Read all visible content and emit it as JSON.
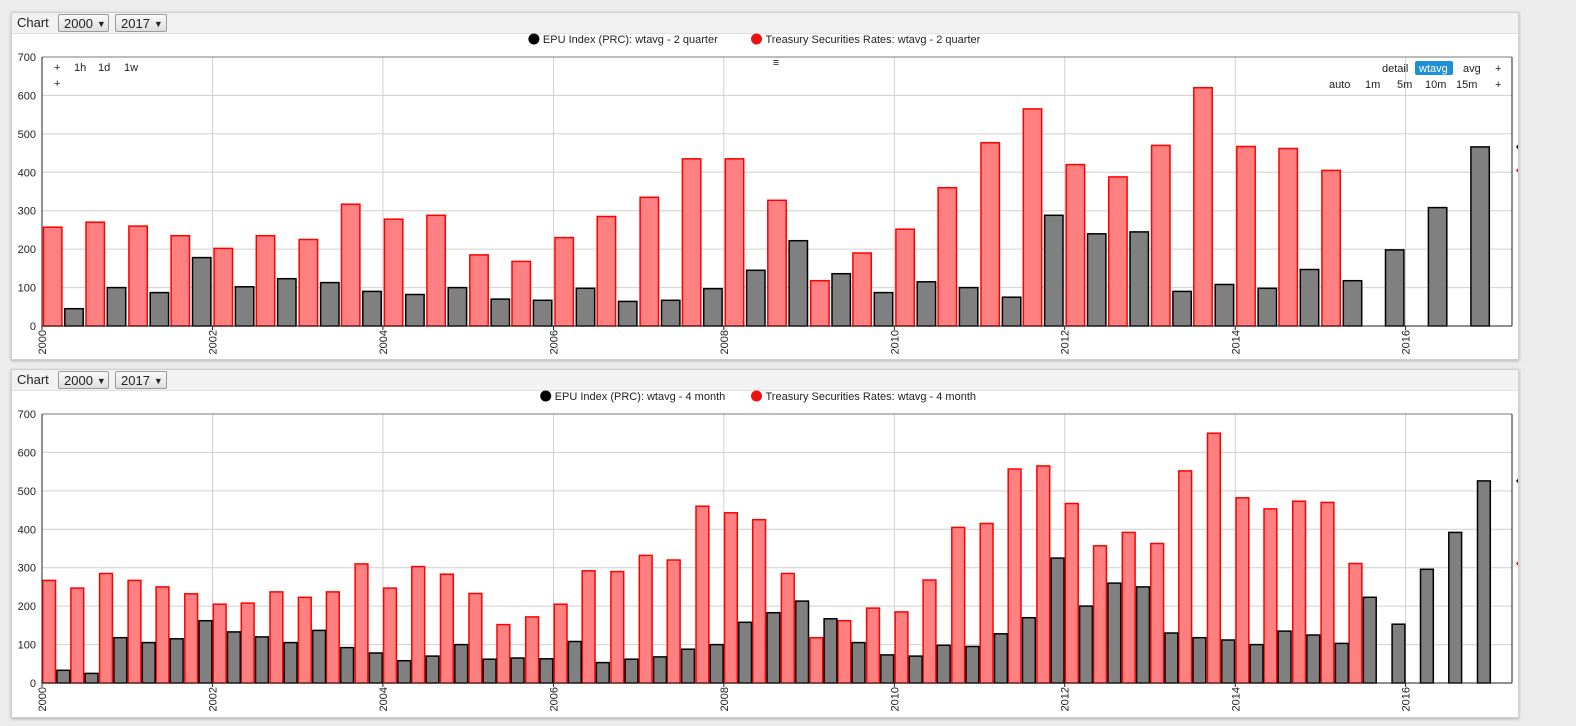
{
  "colors": {
    "epu_fill": "#808080",
    "epu_stroke": "#000000",
    "treasury_fill": "#ff8080",
    "treasury_stroke": "#ff0000",
    "active_button": "#1f8fd8",
    "grid": "#d0d0d0"
  },
  "widgets": [
    {
      "header": {
        "title": "Chart",
        "from": "2000",
        "to": "2017",
        "dropdown_icon": "caret-down-icon"
      },
      "controls": {
        "zoom_left": [
          "+",
          "1h",
          "1d",
          "1w"
        ],
        "zoom_left_row2": [
          "+"
        ],
        "menu_icon": "≡",
        "mode_row": [
          "detail",
          "wtavg",
          "avg",
          "+"
        ],
        "active_mode": "wtavg",
        "period_row": [
          "auto",
          "1m",
          "5m",
          "10m",
          "15m",
          "+"
        ]
      },
      "badges": [
        {
          "value": "466",
          "series": "epu"
        },
        {
          "value": "405",
          "series": "treasury"
        }
      ]
    },
    {
      "header": {
        "title": "Chart",
        "from": "2000",
        "to": "2017",
        "dropdown_icon": "caret-down-icon"
      },
      "controls": null,
      "badges": [
        {
          "value": "526",
          "series": "epu"
        },
        {
          "value": "311",
          "series": "treasury"
        }
      ]
    }
  ],
  "chart_data": [
    {
      "type": "bar",
      "x_axis": "date",
      "xlim": [
        "2000-01-01",
        "2017-04-01"
      ],
      "ylim": [
        0,
        700
      ],
      "yticks": [
        0,
        100,
        200,
        300,
        400,
        500,
        600,
        700
      ],
      "xticks": [
        "2000",
        "2002",
        "2004",
        "2006",
        "2008",
        "2010",
        "2012",
        "2014",
        "2016"
      ],
      "grid": true,
      "legend_position": "top-center",
      "period": "2 quarter",
      "series": [
        {
          "name": "EPU Index (PRC): wtavg - 2 quarter",
          "key": "epu",
          "x": [
            "2000-01-01",
            "2000-07-01",
            "2001-01-01",
            "2001-07-01",
            "2002-01-01",
            "2002-07-01",
            "2003-01-01",
            "2003-07-01",
            "2004-01-01",
            "2004-07-01",
            "2005-01-01",
            "2005-07-01",
            "2006-01-01",
            "2006-07-01",
            "2007-01-01",
            "2007-07-01",
            "2008-01-01",
            "2008-07-01",
            "2009-01-01",
            "2009-07-01",
            "2010-01-01",
            "2010-07-01",
            "2011-01-01",
            "2011-07-01",
            "2012-01-01",
            "2012-07-01",
            "2013-01-01",
            "2013-07-01",
            "2014-01-01",
            "2014-07-01",
            "2015-01-01",
            "2015-07-01",
            "2016-01-01",
            "2016-07-01"
          ],
          "values": [
            45,
            100,
            87,
            178,
            102,
            123,
            113,
            90,
            82,
            100,
            70,
            67,
            98,
            64,
            67,
            97,
            145,
            222,
            136,
            87,
            115,
            100,
            75,
            288,
            240,
            245,
            90,
            108,
            98,
            147,
            118,
            198,
            308,
            466
          ]
        },
        {
          "name": "Treasury Securities Rates: wtavg - 2 quarter",
          "key": "treasury",
          "x": [
            "2000-01-01",
            "2000-07-01",
            "2001-01-01",
            "2001-07-01",
            "2002-01-01",
            "2002-07-01",
            "2003-01-01",
            "2003-07-01",
            "2004-01-01",
            "2004-07-01",
            "2005-01-01",
            "2005-07-01",
            "2006-01-01",
            "2006-07-01",
            "2007-01-01",
            "2007-07-01",
            "2008-01-01",
            "2008-07-01",
            "2009-01-01",
            "2009-07-01",
            "2010-01-01",
            "2010-07-01",
            "2011-01-01",
            "2011-07-01",
            "2012-01-01",
            "2012-07-01",
            "2013-01-01",
            "2013-07-01",
            "2014-01-01",
            "2014-07-01",
            "2015-01-01",
            "2015-07-01"
          ],
          "values": [
            257,
            270,
            260,
            235,
            202,
            235,
            225,
            317,
            278,
            288,
            185,
            168,
            230,
            285,
            335,
            435,
            435,
            327,
            118,
            190,
            252,
            360,
            477,
            565,
            420,
            388,
            470,
            620,
            467,
            462,
            405,
            0
          ]
        }
      ]
    },
    {
      "type": "bar",
      "x_axis": "date",
      "xlim": [
        "2000-01-01",
        "2017-04-01"
      ],
      "ylim": [
        0,
        700
      ],
      "yticks": [
        0,
        100,
        200,
        300,
        400,
        500,
        600,
        700
      ],
      "xticks": [
        "2000",
        "2002",
        "2004",
        "2006",
        "2008",
        "2010",
        "2012",
        "2014",
        "2016"
      ],
      "grid": true,
      "legend_position": "top-center",
      "period": "4 month",
      "series": [
        {
          "name": "EPU Index (PRC): wtavg - 4 month",
          "key": "epu",
          "x": [
            "2000-01-01",
            "2000-05-01",
            "2000-09-01",
            "2001-01-01",
            "2001-05-01",
            "2001-09-01",
            "2002-01-01",
            "2002-05-01",
            "2002-09-01",
            "2003-01-01",
            "2003-05-01",
            "2003-09-01",
            "2004-01-01",
            "2004-05-01",
            "2004-09-01",
            "2005-01-01",
            "2005-05-01",
            "2005-09-01",
            "2006-01-01",
            "2006-05-01",
            "2006-09-01",
            "2007-01-01",
            "2007-05-01",
            "2007-09-01",
            "2008-01-01",
            "2008-05-01",
            "2008-09-01",
            "2009-01-01",
            "2009-05-01",
            "2009-09-01",
            "2010-01-01",
            "2010-05-01",
            "2010-09-01",
            "2011-01-01",
            "2011-05-01",
            "2011-09-01",
            "2012-01-01",
            "2012-05-01",
            "2012-09-01",
            "2013-01-01",
            "2013-05-01",
            "2013-09-01",
            "2014-01-01",
            "2014-05-01",
            "2014-09-01",
            "2015-01-01",
            "2015-05-01",
            "2015-09-01",
            "2016-01-01",
            "2016-05-01",
            "2016-09-01"
          ],
          "values": [
            33,
            25,
            118,
            105,
            115,
            162,
            133,
            120,
            105,
            137,
            92,
            78,
            58,
            70,
            100,
            62,
            65,
            63,
            108,
            53,
            62,
            68,
            88,
            100,
            158,
            183,
            213,
            167,
            105,
            73,
            70,
            98,
            95,
            128,
            170,
            325,
            200,
            260,
            250,
            130,
            118,
            112,
            100,
            135,
            125,
            103,
            223,
            153,
            296,
            392,
            526
          ]
        },
        {
          "name": "Treasury Securities Rates: wtavg - 4 month",
          "key": "treasury",
          "x": [
            "2000-01-01",
            "2000-05-01",
            "2000-09-01",
            "2001-01-01",
            "2001-05-01",
            "2001-09-01",
            "2002-01-01",
            "2002-05-01",
            "2002-09-01",
            "2003-01-01",
            "2003-05-01",
            "2003-09-01",
            "2004-01-01",
            "2004-05-01",
            "2004-09-01",
            "2005-01-01",
            "2005-05-01",
            "2005-09-01",
            "2006-01-01",
            "2006-05-01",
            "2006-09-01",
            "2007-01-01",
            "2007-05-01",
            "2007-09-01",
            "2008-01-01",
            "2008-05-01",
            "2008-09-01",
            "2009-01-01",
            "2009-05-01",
            "2009-09-01",
            "2010-01-01",
            "2010-05-01",
            "2010-09-01",
            "2011-01-01",
            "2011-05-01",
            "2011-09-01",
            "2012-01-01",
            "2012-05-01",
            "2012-09-01",
            "2013-01-01",
            "2013-05-01",
            "2013-09-01",
            "2014-01-01",
            "2014-05-01",
            "2014-09-01",
            "2015-01-01",
            "2015-05-01",
            "2015-09-01"
          ],
          "values": [
            267,
            247,
            285,
            267,
            250,
            232,
            205,
            208,
            237,
            223,
            237,
            310,
            247,
            303,
            283,
            233,
            152,
            172,
            205,
            292,
            290,
            332,
            320,
            460,
            443,
            425,
            285,
            118,
            162,
            195,
            185,
            268,
            405,
            415,
            557,
            565,
            467,
            357,
            392,
            363,
            552,
            650,
            482,
            453,
            473,
            470,
            311,
            0
          ]
        }
      ]
    }
  ]
}
